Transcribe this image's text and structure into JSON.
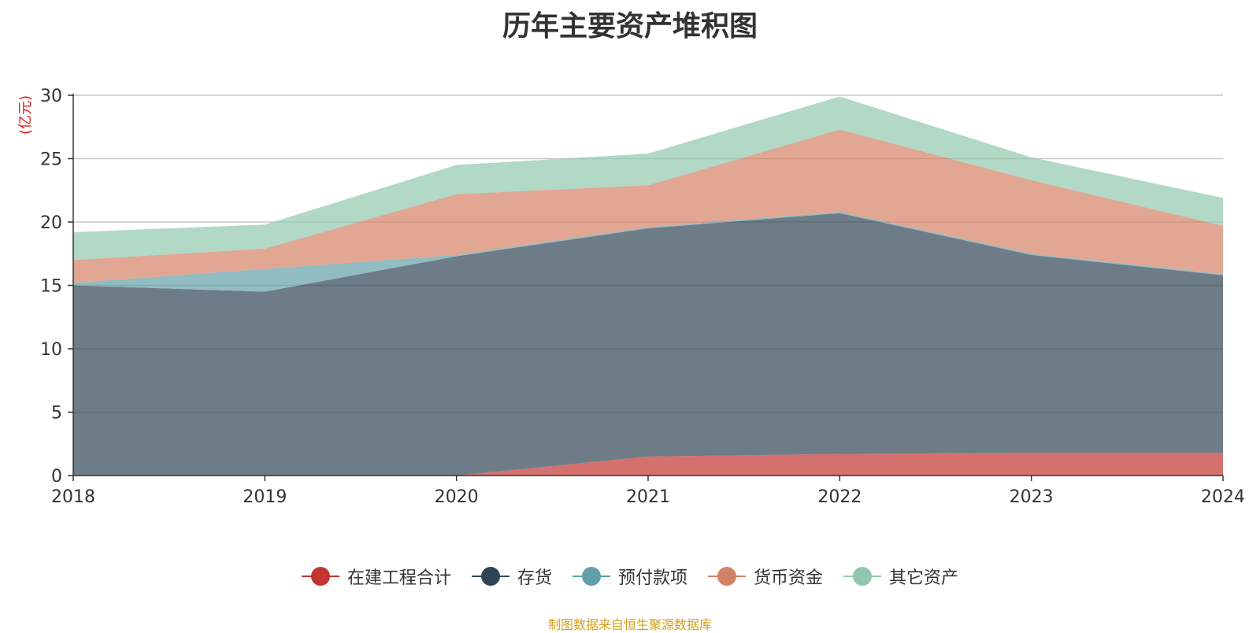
{
  "chart_data": {
    "type": "area",
    "stacked": true,
    "title": "历年主要资产堆积图",
    "ylabel": "(亿元)",
    "categories": [
      "2018",
      "2019",
      "2020",
      "2021",
      "2022",
      "2023",
      "2024"
    ],
    "ylim": [
      0,
      30
    ],
    "yticks": [
      0,
      5,
      10,
      15,
      20,
      25,
      30
    ],
    "grid": true,
    "legend_position": "bottom",
    "series": [
      {
        "name": "在建工程合计",
        "color": "#c23531",
        "values": [
          0,
          0,
          0,
          1.5,
          1.7,
          1.8,
          1.8
        ]
      },
      {
        "name": "存货",
        "color": "#2f4554",
        "values": [
          15.0,
          14.5,
          17.3,
          18.0,
          19.0,
          15.6,
          14.0
        ]
      },
      {
        "name": "预付款项",
        "color": "#61a0a8",
        "values": [
          0.2,
          1.8,
          0.1,
          0.1,
          0.1,
          0.1,
          0.1
        ]
      },
      {
        "name": "货币资金",
        "color": "#d48265",
        "values": [
          1.8,
          1.6,
          4.8,
          3.3,
          6.5,
          5.8,
          3.8
        ]
      },
      {
        "name": "其它资产",
        "color": "#91c7ae",
        "values": [
          2.2,
          1.9,
          2.3,
          2.5,
          2.6,
          1.8,
          2.2
        ]
      }
    ]
  },
  "footer": "制图数据来自恒生聚源数据库"
}
